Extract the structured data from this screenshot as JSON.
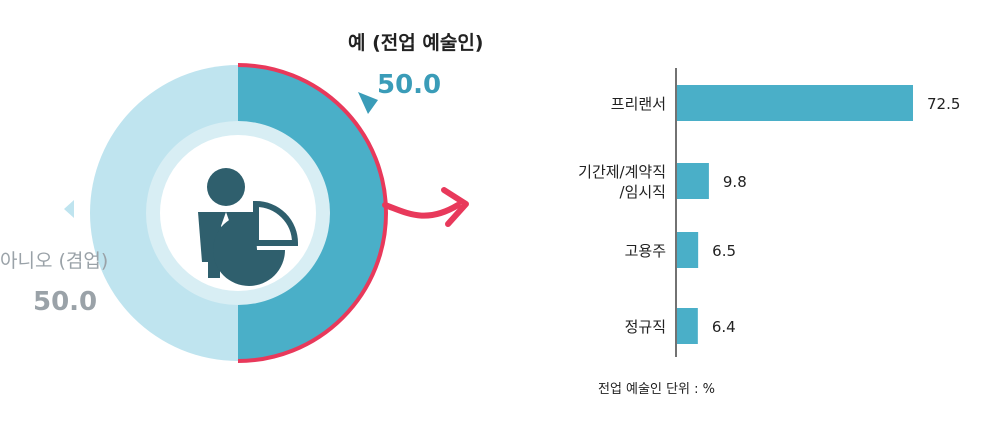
{
  "colors": {
    "light": "#bfe4ef",
    "dark": "#4aafc8",
    "red": "#e8395b",
    "yes_text": "#3a9cb8",
    "no_text": "#9aa2a8",
    "bar": "#4aafc8"
  },
  "chart_data": [
    {
      "type": "pie",
      "slices": [
        {
          "label": "예 (전업 예술인)",
          "value_label": "50.0",
          "value": 50.0
        },
        {
          "label": "아니오 (겸업)",
          "value_label": "50.0",
          "value": 50.0
        }
      ]
    },
    {
      "type": "bar",
      "orientation": "horizontal",
      "categories": [
        {
          "lines": [
            "프리랜서"
          ]
        },
        {
          "lines": [
            "기간제/계약직",
            "/임시직"
          ]
        },
        {
          "lines": [
            "고용주"
          ]
        },
        {
          "lines": [
            "정규직"
          ]
        }
      ],
      "values": [
        72.5,
        9.8,
        6.5,
        6.4
      ],
      "value_labels": [
        "72.5",
        "9.8",
        "6.5",
        "6.4"
      ],
      "xlim": [
        0,
        100
      ],
      "note": "전업 예술인 단위 : %"
    }
  ]
}
